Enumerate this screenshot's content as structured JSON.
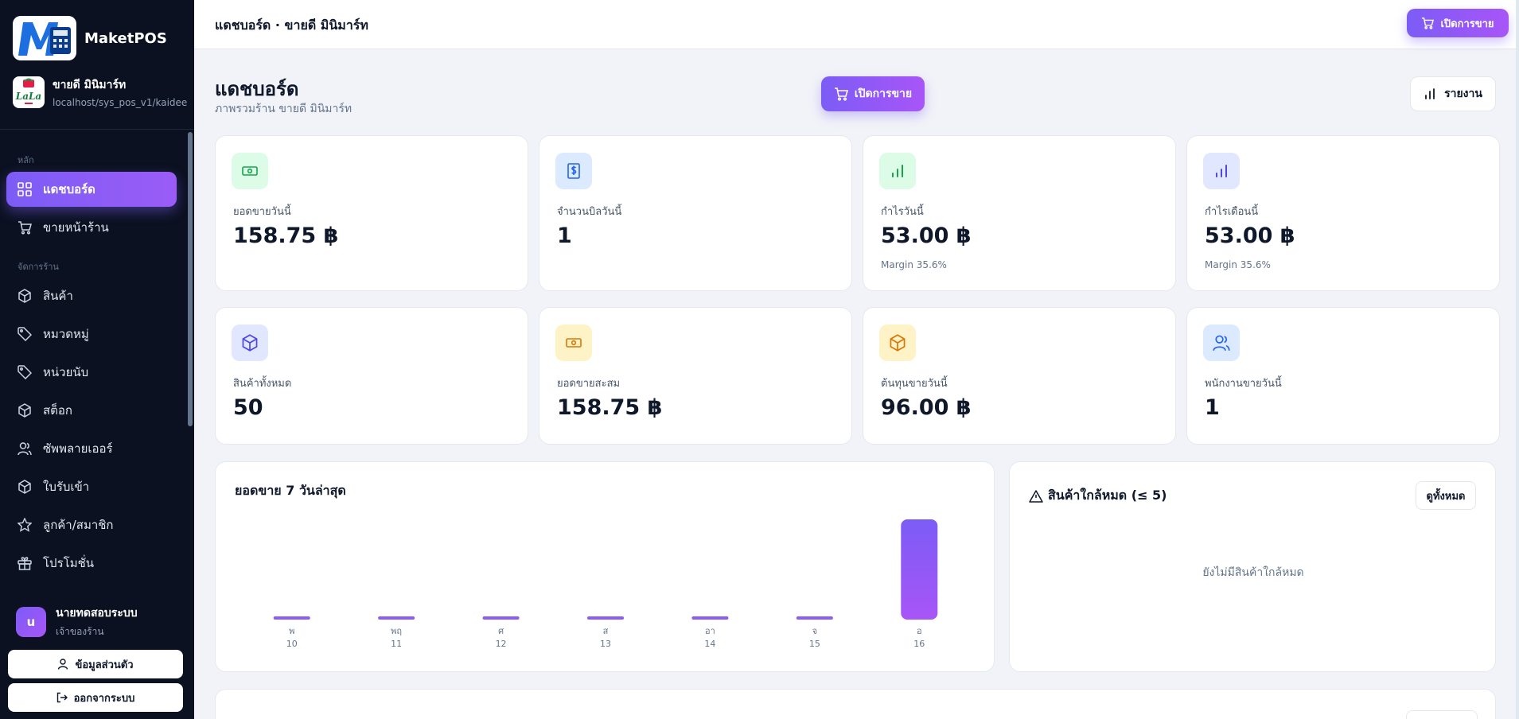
{
  "brand": {
    "name": "MaketPOS"
  },
  "store": {
    "name": "ขายดี มินิมาร์ท",
    "url": "localhost/sys_pos_v1/kaidee"
  },
  "sidebar": {
    "section_main": "หลัก",
    "section_manage": "จัดการร้าน",
    "items": [
      {
        "label": "แดชบอร์ด",
        "icon": "grid-icon",
        "active": true
      },
      {
        "label": "ขายหน้าร้าน",
        "icon": "cart-icon"
      },
      {
        "label": "สินค้า",
        "icon": "box-icon"
      },
      {
        "label": "หมวดหมู่",
        "icon": "tag-icon"
      },
      {
        "label": "หน่วยนับ",
        "icon": "tag-icon"
      },
      {
        "label": "สต็อก",
        "icon": "box-icon"
      },
      {
        "label": "ซัพพลายเออร์",
        "icon": "users-icon"
      },
      {
        "label": "ใบรับเข้า",
        "icon": "box-icon"
      },
      {
        "label": "ลูกค้า/สมาชิก",
        "icon": "star-icon"
      },
      {
        "label": "โปรโมชั่น",
        "icon": "gift-icon"
      }
    ],
    "user": {
      "initial": "u",
      "name": "นายทดสอบระบบ",
      "role": "เจ้าของร้าน"
    },
    "profile_label": "ข้อมูลส่วนตัว",
    "logout_label": "ออกจากระบบ"
  },
  "topbar": {
    "title": "แดชบอร์ด · ขายดี มินิมาร์ท",
    "open_sale": "เปิดการขาย"
  },
  "page": {
    "title": "แดชบอร์ด",
    "subtitle": "ภาพรวมร้าน ขายดี มินิมาร์ท",
    "open_sale": "เปิดการขาย",
    "report": "รายงาน"
  },
  "stats": [
    {
      "label": "ยอดขายวันนี้",
      "value": "158.75 ฿",
      "note": "",
      "icon": "money-icon",
      "bg": "#dcfce7",
      "fg": "#16a34a"
    },
    {
      "label": "จำนวนบิลวันนี้",
      "value": "1",
      "note": "",
      "icon": "receipt-dollar-icon",
      "bg": "#dbeafe",
      "fg": "#2563eb"
    },
    {
      "label": "กำไรวันนี้",
      "value": "53.00 ฿",
      "note": "Margin 35.6%",
      "icon": "bar-chart-icon",
      "bg": "#dcfce7",
      "fg": "#16a34a"
    },
    {
      "label": "กำไรเดือนนี้",
      "value": "53.00 ฿",
      "note": "Margin 35.6%",
      "icon": "bar-chart-icon",
      "bg": "#e0e7ff",
      "fg": "#4f46e5"
    },
    {
      "label": "สินค้าทั้งหมด",
      "value": "50",
      "note": "",
      "icon": "box-icon",
      "bg": "#e0e7ff",
      "fg": "#4f46e5"
    },
    {
      "label": "ยอดขายสะสม",
      "value": "158.75 ฿",
      "note": "",
      "icon": "money-icon",
      "bg": "#fef3c7",
      "fg": "#d97706"
    },
    {
      "label": "ต้นทุนขายวันนี้",
      "value": "96.00 ฿",
      "note": "",
      "icon": "box-icon",
      "bg": "#fef3c7",
      "fg": "#d97706"
    },
    {
      "label": "พนักงานขายวันนี้",
      "value": "1",
      "note": "",
      "icon": "users-icon",
      "bg": "#dbeafe",
      "fg": "#2563eb"
    }
  ],
  "chart": {
    "title": "ยอดขาย 7 วันล่าสุด"
  },
  "chart_data": {
    "type": "bar",
    "categories": [
      "พ 10",
      "พฤ 11",
      "ศ 12",
      "ส 13",
      "อา 14",
      "จ 15",
      "อ 16"
    ],
    "day_labels": [
      "พ",
      "พฤ",
      "ศ",
      "ส",
      "อา",
      "จ",
      "อ"
    ],
    "date_labels": [
      "10",
      "11",
      "12",
      "13",
      "14",
      "15",
      "16"
    ],
    "values": [
      0,
      0,
      0,
      0,
      0,
      0,
      158.75
    ],
    "bar_color": "#8b5cf6",
    "title": "ยอดขาย 7 วันล่าสุด"
  },
  "low_stock": {
    "title": "สินค้าใกล้หมด (≤ 5)",
    "view_all": "ดูทั้งหมด",
    "empty": "ยังไม่มีสินค้าใกล้หมด"
  },
  "colors": {
    "accent": "#7c5cf6",
    "sidebar_bg": "#0b1120"
  }
}
